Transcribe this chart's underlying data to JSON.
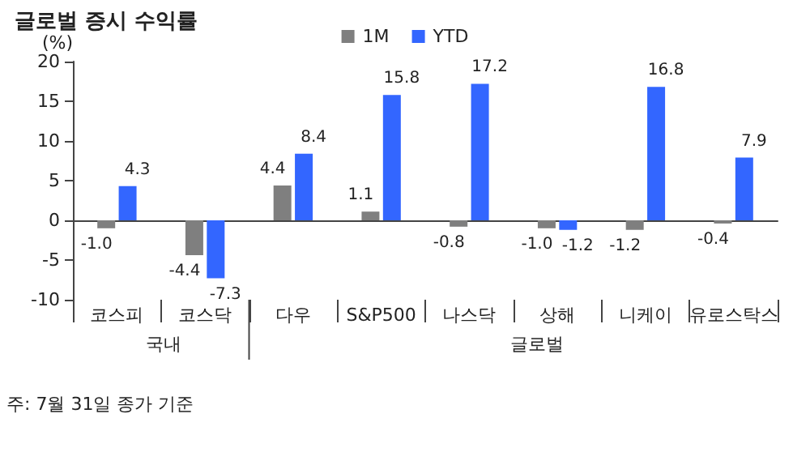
{
  "chart_data": {
    "type": "bar",
    "title": "글로벌 증시 수익률",
    "ylabel": "(%)",
    "categories": [
      "코스피",
      "코스닥",
      "다우",
      "S&P500",
      "나스닥",
      "상해",
      "니케이",
      "유로스탁스"
    ],
    "series": [
      {
        "name": "1M",
        "color": "#7f7f7f",
        "values": [
          -1.0,
          -4.4,
          4.4,
          1.1,
          -0.8,
          -1.0,
          -1.2,
          -0.4
        ],
        "value_labels": [
          "-1.0",
          "-4.4",
          "4.4",
          "1.1",
          "-0.8",
          "-1.0",
          "-1.2",
          "-0.4"
        ]
      },
      {
        "name": "YTD",
        "color": "#3366ff",
        "values": [
          4.3,
          -7.3,
          8.4,
          15.8,
          17.2,
          -1.2,
          16.8,
          7.9
        ],
        "value_labels": [
          "4.3",
          "-7.3",
          "8.4",
          "15.8",
          "17.2",
          "-1.2",
          "16.8",
          "7.9"
        ]
      }
    ],
    "ylim": [
      -10,
      20
    ],
    "yticks": [
      -10,
      -5,
      0,
      5,
      10,
      15,
      20
    ],
    "legend": "top",
    "annotations": [
      "국내",
      "글로벌",
      "주: 7월 31일 종가 기준"
    ]
  }
}
